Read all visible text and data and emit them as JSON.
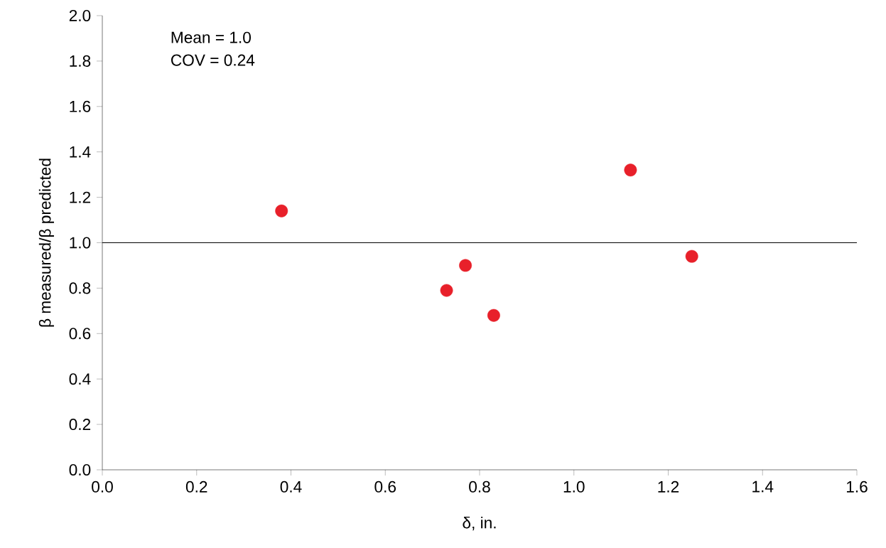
{
  "chart_data": {
    "type": "scatter",
    "xlabel": "δ, in.",
    "ylabel": "β measured/β predicted",
    "x": [
      0.38,
      0.73,
      0.77,
      0.83,
      1.12,
      1.25
    ],
    "values": [
      1.14,
      0.79,
      0.9,
      0.68,
      1.32,
      0.94
    ],
    "color": "#e8202a",
    "xlim": [
      0,
      1.6
    ],
    "ylim": [
      0,
      2.0
    ],
    "xticks": [
      {
        "value": 0,
        "label": "0.0"
      },
      0.2,
      0.4,
      0.6,
      0.8,
      {
        "value": 1,
        "label": "1.0"
      },
      1.2,
      1.4,
      1.6
    ],
    "yticks": [
      {
        "value": 0,
        "label": "0.0"
      },
      0.2,
      0.4,
      0.6,
      0.8,
      {
        "value": 1,
        "label": "1.0"
      },
      1.2,
      1.4,
      1.6,
      1.8,
      {
        "value": 2,
        "label": "2.0"
      }
    ],
    "ref_lines": [
      {
        "axis": "y",
        "value": 1.0,
        "color": "#000000"
      }
    ],
    "annotations": [
      "Mean = 1.0",
      "COV = 0.24"
    ],
    "grid": false,
    "legend": false
  }
}
